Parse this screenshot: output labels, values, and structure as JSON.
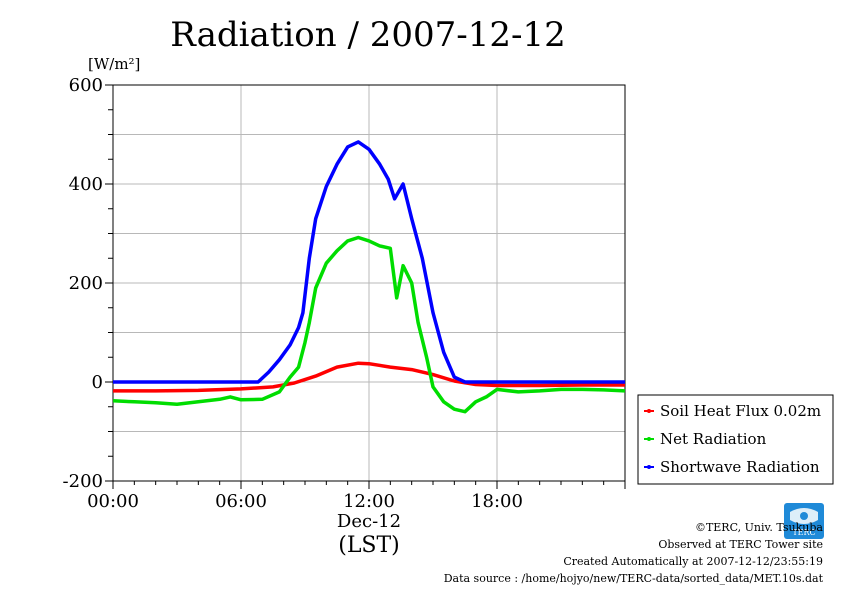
{
  "chart_data": {
    "type": "line",
    "title": "Radiation / 2007-12-12",
    "ylabel": "[W/m²]",
    "xlabel": "(LST)",
    "x_date_label": "Dec-12",
    "x_range_hours": [
      0,
      24
    ],
    "x_ticks": [
      {
        "hour": 0,
        "label": "00:00"
      },
      {
        "hour": 6,
        "label": "06:00"
      },
      {
        "hour": 12,
        "label": "12:00"
      },
      {
        "hour": 18,
        "label": "18:00"
      }
    ],
    "ylim": [
      -200,
      600
    ],
    "y_ticks": [
      {
        "value": 600,
        "label": "600"
      },
      {
        "value": 400,
        "label": "400"
      },
      {
        "value": 200,
        "label": "200"
      },
      {
        "value": 0,
        "label": "0"
      },
      {
        "value": -200,
        "label": "-200"
      }
    ],
    "grid": true,
    "legend_position": "right-bottom-outside",
    "series": [
      {
        "name": "Soil Heat Flux 0.02m",
        "color": "#ff0000",
        "points": [
          [
            0,
            -18
          ],
          [
            2,
            -18
          ],
          [
            4,
            -17
          ],
          [
            6,
            -14
          ],
          [
            7.5,
            -10
          ],
          [
            8.5,
            -2
          ],
          [
            9.5,
            12
          ],
          [
            10.5,
            30
          ],
          [
            11.5,
            38
          ],
          [
            12,
            37
          ],
          [
            13,
            30
          ],
          [
            14,
            25
          ],
          [
            15,
            15
          ],
          [
            16,
            2
          ],
          [
            17,
            -5
          ],
          [
            18,
            -7
          ],
          [
            20,
            -7
          ],
          [
            22,
            -6
          ],
          [
            24,
            -6
          ]
        ]
      },
      {
        "name": "Net Radiation",
        "color": "#00dd00",
        "points": [
          [
            0,
            -38
          ],
          [
            1,
            -40
          ],
          [
            2,
            -42
          ],
          [
            3,
            -45
          ],
          [
            4,
            -40
          ],
          [
            5,
            -35
          ],
          [
            5.5,
            -30
          ],
          [
            6,
            -36
          ],
          [
            7,
            -35
          ],
          [
            7.8,
            -20
          ],
          [
            8.3,
            10
          ],
          [
            8.7,
            30
          ],
          [
            9.0,
            80
          ],
          [
            9.2,
            120
          ],
          [
            9.5,
            190
          ],
          [
            10,
            240
          ],
          [
            10.5,
            265
          ],
          [
            11,
            285
          ],
          [
            11.5,
            292
          ],
          [
            12,
            285
          ],
          [
            12.5,
            275
          ],
          [
            13,
            270
          ],
          [
            13.3,
            170
          ],
          [
            13.6,
            235
          ],
          [
            14,
            200
          ],
          [
            14.3,
            120
          ],
          [
            14.7,
            50
          ],
          [
            15,
            -10
          ],
          [
            15.5,
            -40
          ],
          [
            16,
            -55
          ],
          [
            16.5,
            -60
          ],
          [
            17,
            -40
          ],
          [
            17.5,
            -30
          ],
          [
            18,
            -15
          ],
          [
            19,
            -20
          ],
          [
            20,
            -18
          ],
          [
            21,
            -15
          ],
          [
            22,
            -15
          ],
          [
            23,
            -16
          ],
          [
            24,
            -18
          ]
        ]
      },
      {
        "name": "Shortwave Radiation",
        "color": "#0000ff",
        "points": [
          [
            0,
            0
          ],
          [
            2,
            0
          ],
          [
            4,
            0
          ],
          [
            6,
            0
          ],
          [
            6.8,
            0
          ],
          [
            7.3,
            20
          ],
          [
            7.8,
            45
          ],
          [
            8.3,
            75
          ],
          [
            8.7,
            110
          ],
          [
            8.9,
            140
          ],
          [
            9.2,
            250
          ],
          [
            9.5,
            330
          ],
          [
            10,
            395
          ],
          [
            10.5,
            440
          ],
          [
            11,
            475
          ],
          [
            11.5,
            485
          ],
          [
            12,
            470
          ],
          [
            12.5,
            440
          ],
          [
            12.9,
            410
          ],
          [
            13.2,
            370
          ],
          [
            13.6,
            400
          ],
          [
            14,
            330
          ],
          [
            14.5,
            250
          ],
          [
            15,
            140
          ],
          [
            15.5,
            60
          ],
          [
            16,
            10
          ],
          [
            16.5,
            0
          ],
          [
            18,
            0
          ],
          [
            20,
            0
          ],
          [
            22,
            0
          ],
          [
            24,
            0
          ]
        ]
      }
    ]
  },
  "credits": [
    "©TERC, Univ. Tsukuba",
    "Observed at TERC Tower site",
    "Created Automatically at 2007-12-12/23:55:19",
    "Data source : /home/hojyo/new/TERC-data/sorted_data/MET.10s.dat"
  ],
  "logo": {
    "text": "TERC",
    "color": "#1f8ad8"
  }
}
